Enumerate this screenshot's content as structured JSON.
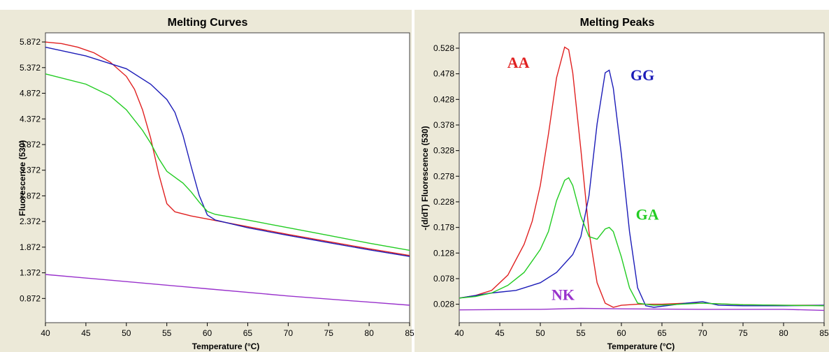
{
  "colors": {
    "AA": "#e02020",
    "GG": "#1c1cb8",
    "GA": "#22cc22",
    "NK": "#9932cc"
  },
  "chart_data": [
    {
      "type": "line",
      "title": "Melting Curves",
      "xlabel": "Temperature (°C)",
      "ylabel": "Fluorescence (530)",
      "xlim": [
        40,
        85
      ],
      "ylim": [
        0.4,
        6.05
      ],
      "xticks": [
        40,
        45,
        50,
        55,
        60,
        65,
        70,
        75,
        80,
        85
      ],
      "yticks": [
        0.872,
        1.372,
        1.872,
        2.372,
        2.872,
        3.372,
        3.872,
        4.372,
        4.872,
        5.372,
        5.872
      ],
      "ytick_labels": [
        "0.872",
        "1.372",
        "1.872",
        "2.372",
        "2.872",
        "3.372",
        "3.872",
        "4.372",
        "4.872",
        "5.372",
        "5.872"
      ],
      "grid": false,
      "series": [
        {
          "color_key": "AA",
          "points": [
            [
              40,
              5.87
            ],
            [
              42,
              5.84
            ],
            [
              44,
              5.77
            ],
            [
              46,
              5.66
            ],
            [
              48,
              5.48
            ],
            [
              50,
              5.2
            ],
            [
              51,
              4.95
            ],
            [
              52,
              4.55
            ],
            [
              53,
              4.0
            ],
            [
              54,
              3.3
            ],
            [
              55,
              2.72
            ],
            [
              56,
              2.56
            ],
            [
              58,
              2.48
            ],
            [
              60,
              2.42
            ],
            [
              65,
              2.27
            ],
            [
              70,
              2.12
            ],
            [
              75,
              1.98
            ],
            [
              80,
              1.84
            ],
            [
              85,
              1.71
            ]
          ]
        },
        {
          "color_key": "GG",
          "points": [
            [
              40,
              5.77
            ],
            [
              45,
              5.6
            ],
            [
              50,
              5.35
            ],
            [
              53,
              5.05
            ],
            [
              55,
              4.75
            ],
            [
              56,
              4.5
            ],
            [
              57,
              4.05
            ],
            [
              58,
              3.45
            ],
            [
              59,
              2.88
            ],
            [
              60,
              2.5
            ],
            [
              61,
              2.4
            ],
            [
              65,
              2.25
            ],
            [
              70,
              2.1
            ],
            [
              75,
              1.96
            ],
            [
              80,
              1.82
            ],
            [
              85,
              1.69
            ]
          ]
        },
        {
          "color_key": "GA",
          "points": [
            [
              40,
              5.25
            ],
            [
              45,
              5.05
            ],
            [
              48,
              4.82
            ],
            [
              50,
              4.55
            ],
            [
              52,
              4.15
            ],
            [
              53,
              3.9
            ],
            [
              54,
              3.6
            ],
            [
              55,
              3.35
            ],
            [
              57,
              3.12
            ],
            [
              58,
              2.95
            ],
            [
              59,
              2.75
            ],
            [
              60,
              2.57
            ],
            [
              61,
              2.51
            ],
            [
              65,
              2.4
            ],
            [
              70,
              2.25
            ],
            [
              75,
              2.1
            ],
            [
              80,
              1.95
            ],
            [
              85,
              1.81
            ]
          ]
        },
        {
          "color_key": "NK",
          "points": [
            [
              40,
              1.34
            ],
            [
              50,
              1.2
            ],
            [
              60,
              1.06
            ],
            [
              70,
              0.92
            ],
            [
              80,
              0.8
            ],
            [
              85,
              0.74
            ]
          ]
        }
      ]
    },
    {
      "type": "line",
      "title": "Melting Peaks",
      "xlabel": "Temperature (°C)",
      "ylabel": "-(d/dT) Fluorescence (530)",
      "xlim": [
        40,
        85
      ],
      "ylim": [
        -0.008,
        0.558
      ],
      "xticks": [
        40,
        45,
        50,
        55,
        60,
        65,
        70,
        75,
        80,
        85
      ],
      "yticks": [
        0.028,
        0.078,
        0.128,
        0.178,
        0.228,
        0.278,
        0.328,
        0.378,
        0.428,
        0.478,
        0.528
      ],
      "ytick_labels": [
        "0.028",
        "0.078",
        "0.128",
        "0.178",
        "0.228",
        "0.278",
        "0.328",
        "0.378",
        "0.428",
        "0.478",
        "0.528"
      ],
      "grid": false,
      "annotations": [
        {
          "text": "AA",
          "x": 47.3,
          "y": 0.49,
          "color_key": "AA"
        },
        {
          "text": "GG",
          "x": 62.6,
          "y": 0.465,
          "color_key": "GG"
        },
        {
          "text": "GA",
          "x": 63.2,
          "y": 0.193,
          "color_key": "GA"
        },
        {
          "text": "NK",
          "x": 52.8,
          "y": 0.036,
          "color_key": "NK"
        }
      ],
      "series": [
        {
          "color_key": "AA",
          "points": [
            [
              40,
              0.04
            ],
            [
              42,
              0.045
            ],
            [
              44,
              0.055
            ],
            [
              46,
              0.085
            ],
            [
              48,
              0.145
            ],
            [
              49,
              0.19
            ],
            [
              50,
              0.26
            ],
            [
              51,
              0.36
            ],
            [
              52,
              0.47
            ],
            [
              53,
              0.53
            ],
            [
              53.5,
              0.525
            ],
            [
              54,
              0.48
            ],
            [
              55,
              0.33
            ],
            [
              56,
              0.17
            ],
            [
              57,
              0.07
            ],
            [
              58,
              0.03
            ],
            [
              59,
              0.022
            ],
            [
              60,
              0.026
            ],
            [
              62,
              0.028
            ],
            [
              65,
              0.028
            ],
            [
              68,
              0.03
            ],
            [
              70,
              0.03
            ],
            [
              75,
              0.027
            ],
            [
              80,
              0.026
            ],
            [
              85,
              0.026
            ]
          ]
        },
        {
          "color_key": "GG",
          "points": [
            [
              40,
              0.04
            ],
            [
              44,
              0.05
            ],
            [
              47,
              0.055
            ],
            [
              50,
              0.07
            ],
            [
              52,
              0.09
            ],
            [
              54,
              0.125
            ],
            [
              55,
              0.16
            ],
            [
              56,
              0.24
            ],
            [
              57,
              0.38
            ],
            [
              58,
              0.48
            ],
            [
              58.5,
              0.485
            ],
            [
              59,
              0.45
            ],
            [
              60,
              0.32
            ],
            [
              61,
              0.17
            ],
            [
              62,
              0.06
            ],
            [
              63,
              0.025
            ],
            [
              64,
              0.022
            ],
            [
              66,
              0.026
            ],
            [
              68,
              0.03
            ],
            [
              70,
              0.033
            ],
            [
              72,
              0.026
            ],
            [
              75,
              0.025
            ],
            [
              80,
              0.025
            ],
            [
              85,
              0.026
            ]
          ]
        },
        {
          "color_key": "GA",
          "points": [
            [
              40,
              0.04
            ],
            [
              42,
              0.043
            ],
            [
              44,
              0.05
            ],
            [
              46,
              0.065
            ],
            [
              48,
              0.09
            ],
            [
              50,
              0.135
            ],
            [
              51,
              0.17
            ],
            [
              52,
              0.23
            ],
            [
              53,
              0.27
            ],
            [
              53.5,
              0.275
            ],
            [
              54,
              0.26
            ],
            [
              55,
              0.2
            ],
            [
              56,
              0.16
            ],
            [
              57,
              0.155
            ],
            [
              58,
              0.175
            ],
            [
              58.5,
              0.178
            ],
            [
              59,
              0.17
            ],
            [
              60,
              0.12
            ],
            [
              61,
              0.06
            ],
            [
              62,
              0.03
            ],
            [
              64,
              0.026
            ],
            [
              66,
              0.027
            ],
            [
              70,
              0.03
            ],
            [
              75,
              0.027
            ],
            [
              80,
              0.026
            ],
            [
              85,
              0.025
            ]
          ]
        },
        {
          "color_key": "NK",
          "points": [
            [
              40,
              0.017
            ],
            [
              50,
              0.018
            ],
            [
              55,
              0.02
            ],
            [
              60,
              0.019
            ],
            [
              70,
              0.018
            ],
            [
              80,
              0.018
            ],
            [
              85,
              0.016
            ]
          ]
        }
      ]
    }
  ]
}
